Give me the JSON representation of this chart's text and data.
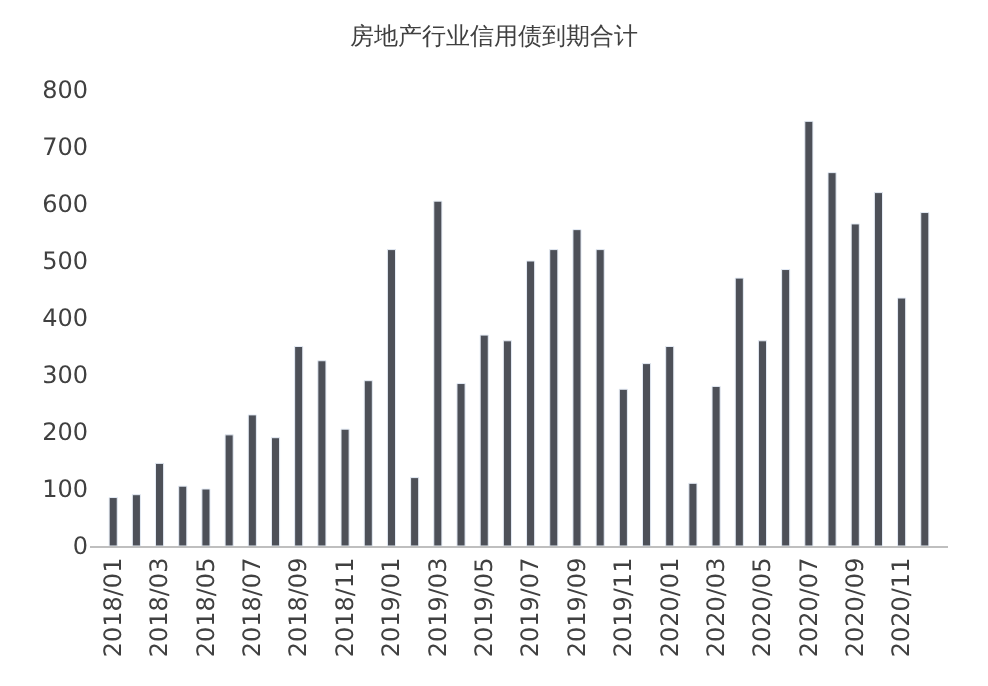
{
  "chart_data": {
    "type": "bar",
    "title": "房地产行业信用债到期合计",
    "categories": [
      "2018/01",
      null,
      "2018/03",
      null,
      "2018/05",
      null,
      "2018/07",
      null,
      "2018/09",
      null,
      "2018/11",
      null,
      "2019/01",
      null,
      "2019/03",
      null,
      "2019/05",
      null,
      "2019/07",
      null,
      "2019/09",
      null,
      "2019/11",
      null,
      "2020/01",
      null,
      "2020/03",
      null,
      "2020/05",
      null,
      "2020/07",
      null,
      "2020/09",
      null,
      "2020/11",
      null
    ],
    "values": [
      85,
      90,
      145,
      105,
      100,
      195,
      230,
      190,
      350,
      325,
      205,
      290,
      520,
      120,
      605,
      285,
      370,
      360,
      500,
      520,
      555,
      520,
      275,
      320,
      350,
      110,
      280,
      470,
      360,
      485,
      745,
      655,
      565,
      620,
      435,
      585
    ],
    "color": "#4d5058",
    "ylim": [
      0,
      800
    ],
    "yticks": [
      0,
      100,
      200,
      300,
      400,
      500,
      600,
      700,
      800
    ]
  }
}
